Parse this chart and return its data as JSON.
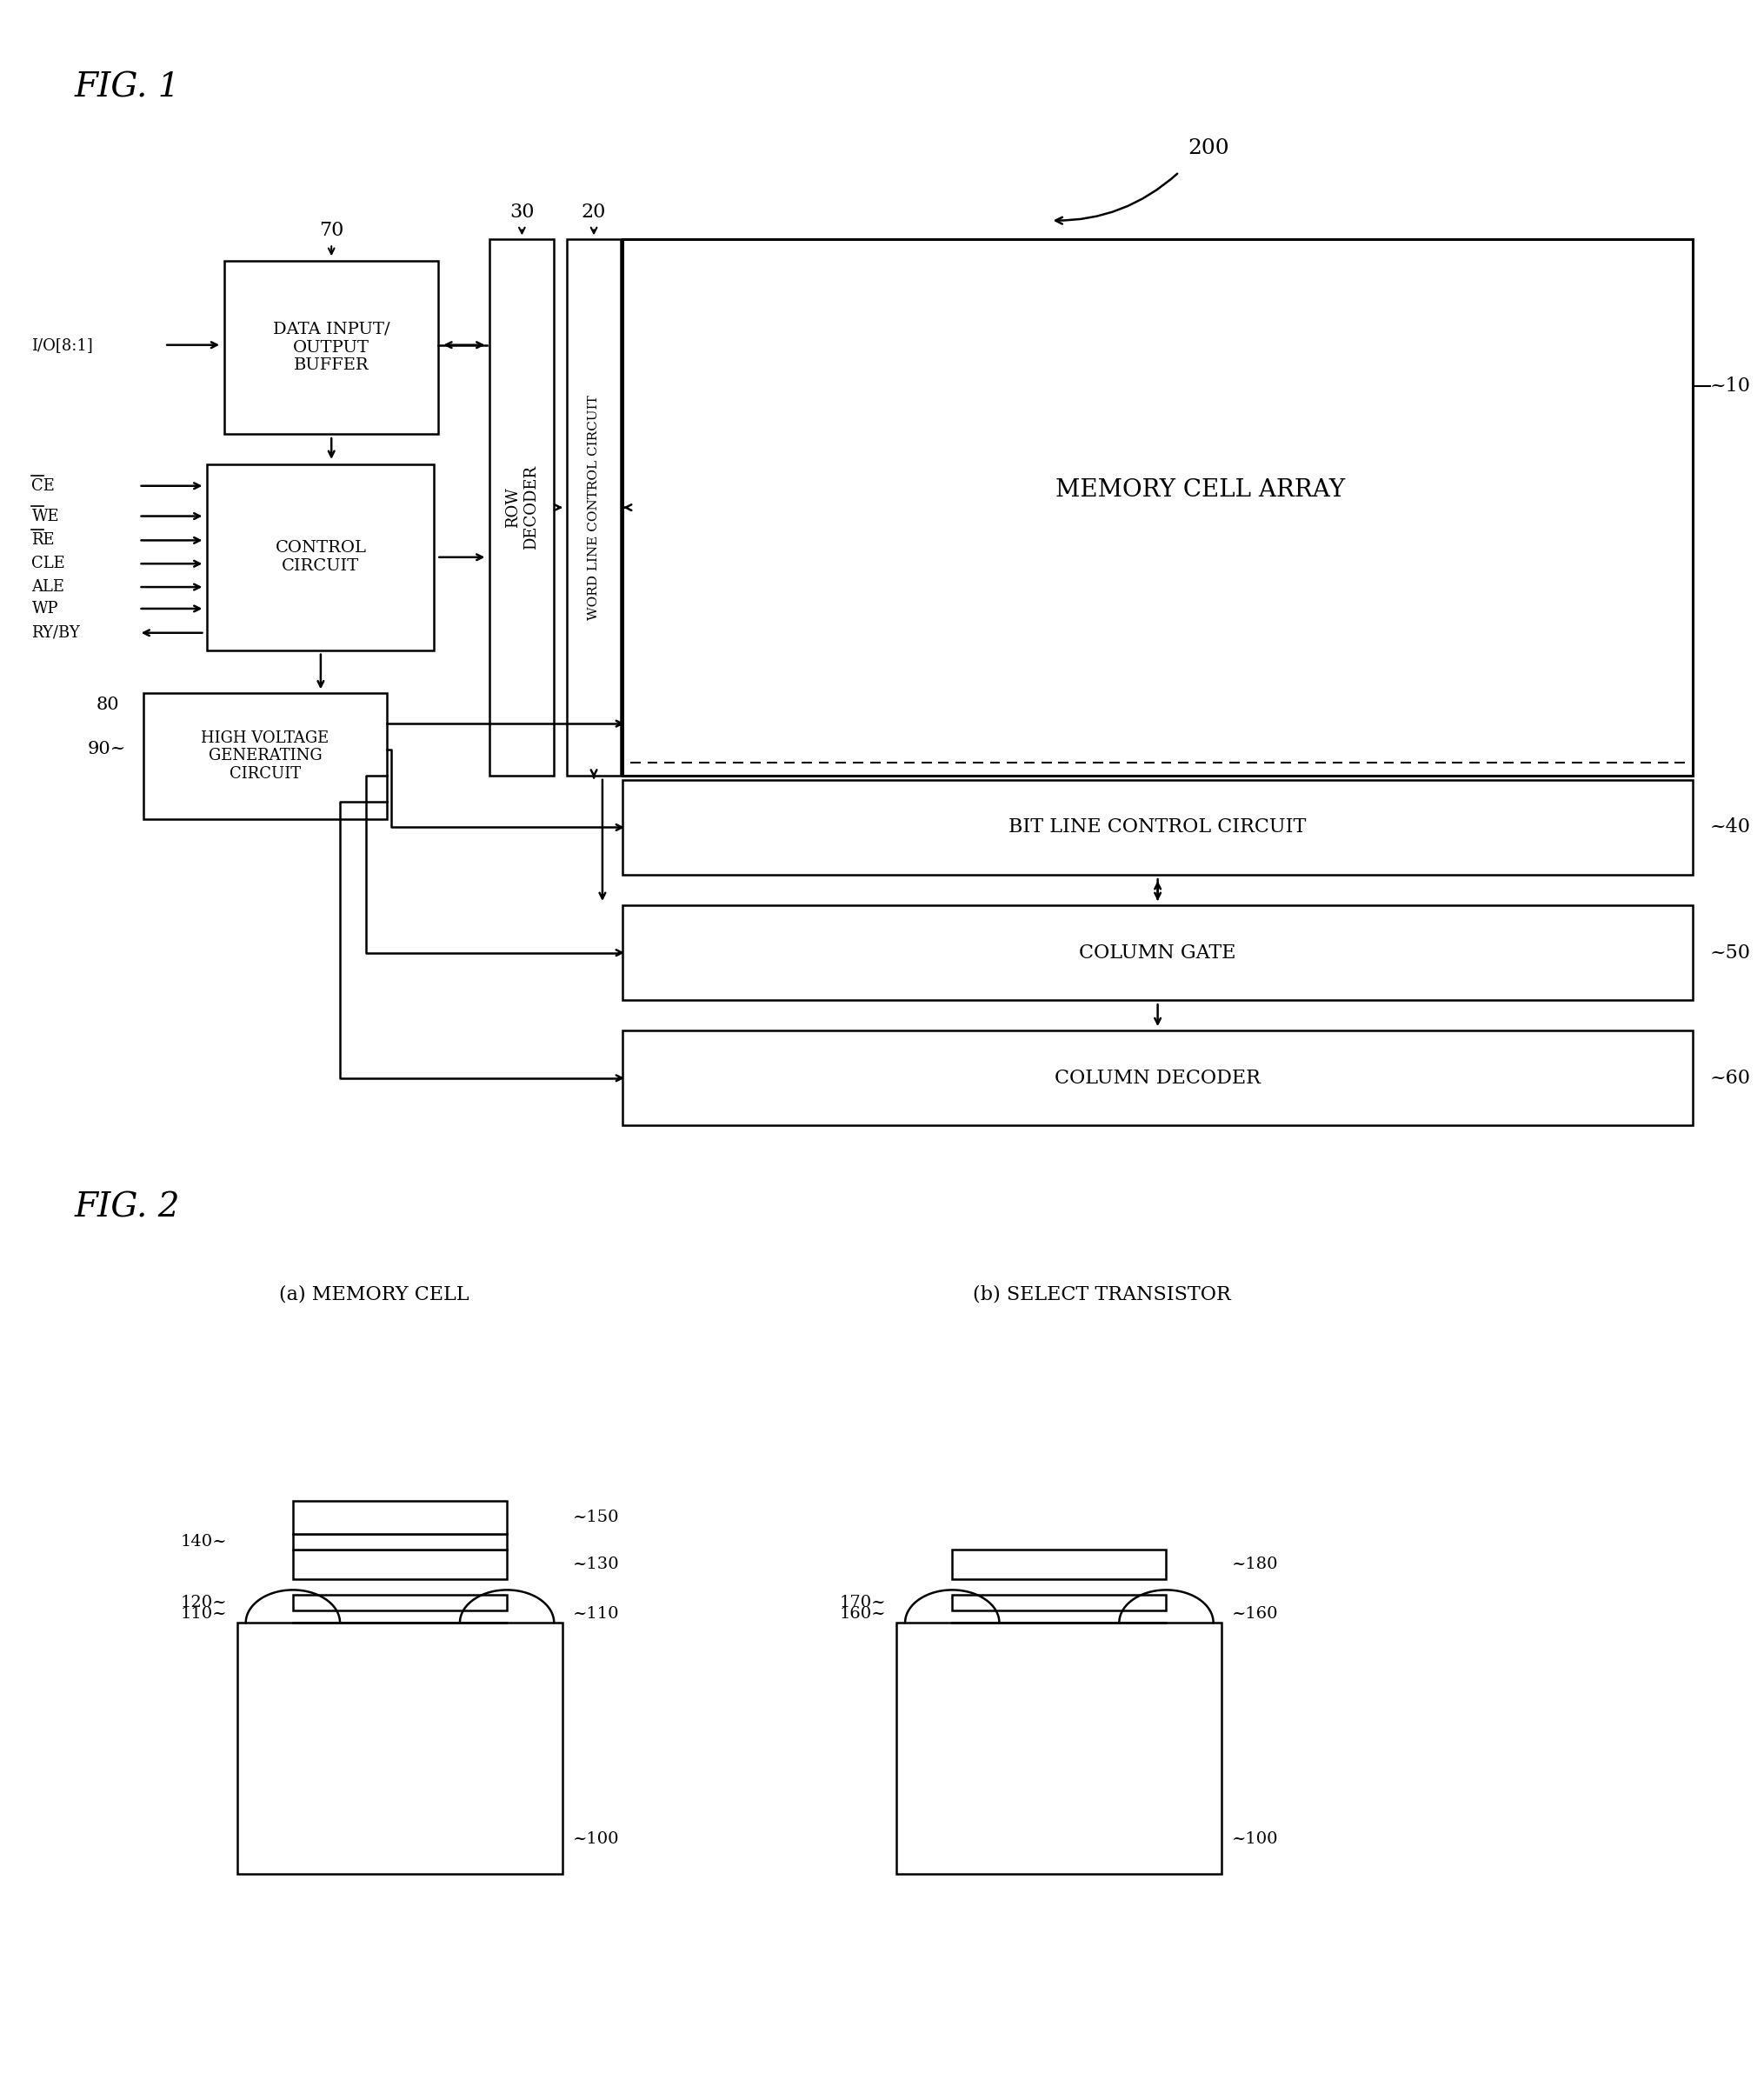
{
  "fig_width": 20.29,
  "fig_height": 24.15,
  "bg_color": "#ffffff",
  "fig1_title": "FIG. 1",
  "fig2_title": "FIG. 2",
  "label_200": "200",
  "label_10": "~10",
  "label_20": "20",
  "label_30": "30",
  "label_40": "~40",
  "label_50": "~50",
  "label_60": "~60",
  "label_70": "70",
  "label_80": "80",
  "label_90": "90",
  "label_io": "I/O[8:1]",
  "label_ce": "CE",
  "label_we": "WE",
  "label_re": "RE",
  "label_cle": "CLE",
  "label_ale": "ALE",
  "label_wp": "WP",
  "label_ryby": "RY/BY",
  "box_data_input": "DATA INPUT/\nOUTPUT\nBUFFER",
  "box_control": "CONTROL\nCIRCUIT",
  "box_hvgen": "HIGH VOLTAGE\nGENERATING\nCIRCUIT",
  "box_row_dec": "ROW\nDECODER",
  "box_wlc": "WORD LINE CONTROL CIRCUIT",
  "box_memory": "MEMORY CELL ARRAY",
  "box_blc": "BIT LINE CONTROL CIRCUIT",
  "box_cgate": "COLUMN GATE",
  "box_cdec": "COLUMN DECODER",
  "fig2a_title": "(a) MEMORY CELL",
  "fig2b_title": "(b) SELECT TRANSISTOR",
  "label_100": "~100",
  "label_110a": "110~",
  "label_110b": "~110",
  "label_120": "120~",
  "label_130": "~130",
  "label_140": "140~",
  "label_150": "~150",
  "label_160a": "160~",
  "label_160b": "~160",
  "label_170": "170~",
  "label_180": "~180"
}
